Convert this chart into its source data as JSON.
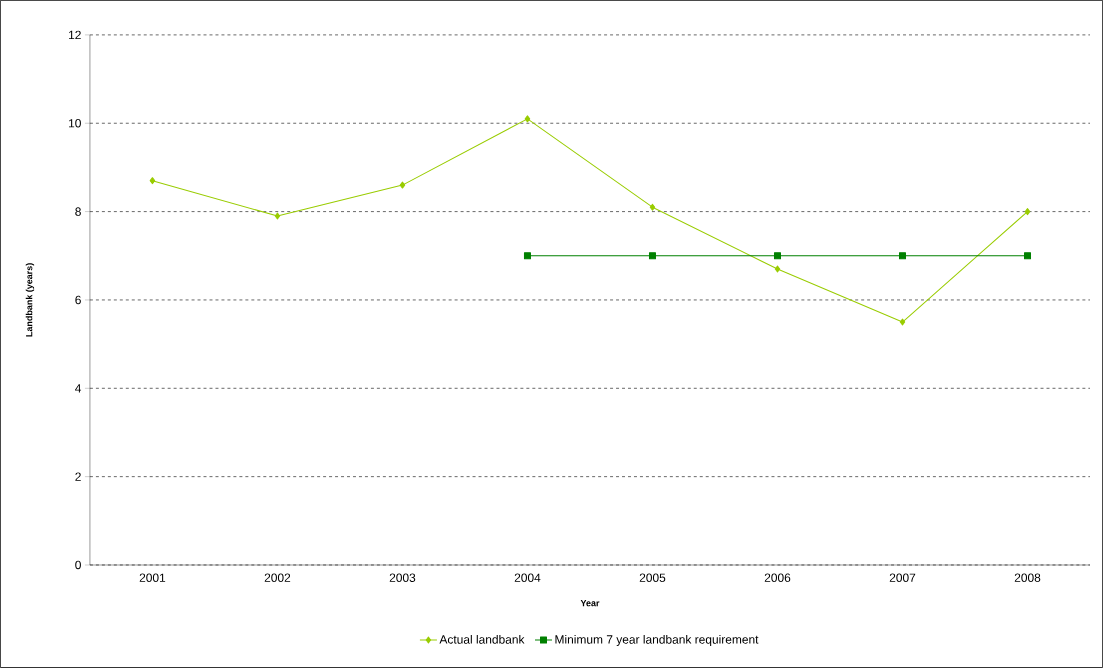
{
  "chart_data": {
    "type": "line",
    "xlabel": "Year",
    "ylabel": "Landbank (years)",
    "categories": [
      "2001",
      "2002",
      "2003",
      "2004",
      "2005",
      "2006",
      "2007",
      "2008"
    ],
    "series": [
      {
        "name": "Actual landbank",
        "color": "#99cc00",
        "marker": "diamond",
        "values": [
          8.7,
          7.9,
          8.6,
          10.1,
          8.1,
          6.7,
          5.5,
          8.0
        ]
      },
      {
        "name": "Minimum 7 year landbank requirement",
        "color": "#008000",
        "marker": "square",
        "values": [
          null,
          null,
          null,
          7,
          7,
          7,
          7,
          7
        ]
      }
    ],
    "ylim": [
      0,
      12
    ],
    "yticks": [
      0,
      2,
      4,
      6,
      8,
      10,
      12
    ],
    "grid": "y",
    "legend": "bottom",
    "line_style": "solid"
  }
}
